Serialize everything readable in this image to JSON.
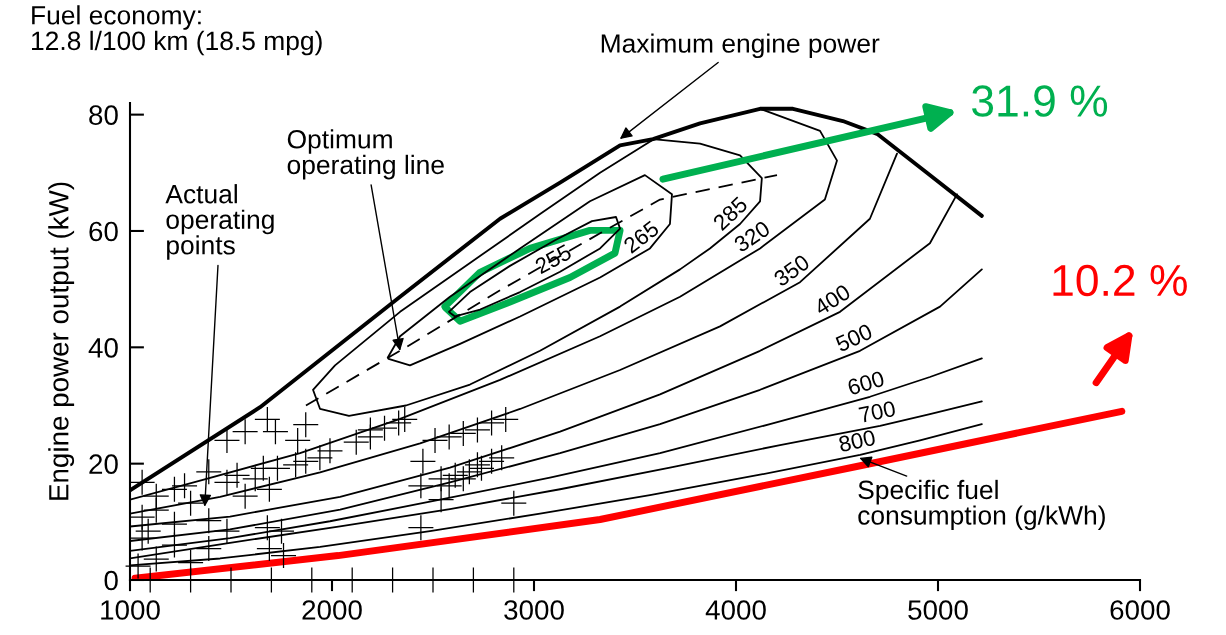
{
  "chart_data": {
    "type": "line",
    "ylabel": "Engine power output (kW)",
    "xlim": [
      1000,
      6000
    ],
    "xticks": [
      1000,
      2000,
      3000,
      4000,
      5000,
      6000
    ],
    "ylim": [
      0,
      82
    ],
    "yticks": [
      0,
      20,
      40,
      60,
      80
    ],
    "grid": false,
    "annotations": [
      "Fuel economy:\n12.8 l/100 km (18.5 mpg)",
      {
        "text": "Maximum engine power",
        "x": 3425,
        "y": 75.8
      },
      {
        "text": "Optimum\noperating line",
        "x": 2337,
        "y": 39.4
      },
      {
        "text": "Actual\noperating\npoints",
        "x": 1370,
        "y": 12.6
      },
      {
        "text": "Specific fuel\nconsumption (g/kWh)",
        "x": 4610,
        "y": 21
      },
      "31.9 %",
      "10.2 %"
    ],
    "series": [
      {
        "color": "#000000",
        "x": [
          1000,
          1644,
          2337,
          2832,
          3129,
          3426,
          3589,
          3822,
          4119,
          4282,
          4529,
          4698,
          4945,
          5217
        ],
        "values": [
          15.4,
          29.7,
          48.7,
          62.1,
          68.3,
          74.7,
          75.8,
          78.5,
          81.0,
          81.0,
          78.9,
          76.7,
          70.0,
          62.6
        ]
      },
      {
        "color": "#000000",
        "line_style": "dashed",
        "x": [
          1871,
          2337,
          2832,
          3327,
          3624,
          4203
        ],
        "values": [
          30.0,
          39.4,
          49.8,
          59.6,
          65.4,
          69.6
        ]
      },
      {
        "name": "255",
        "color": "#000000",
        "x": [
          2579,
          2683,
          2881,
          3104,
          3287,
          3406,
          3426,
          3327,
          3129,
          2931,
          2733,
          2609,
          2582
        ],
        "values": [
          46.1,
          49.5,
          54.0,
          58.4,
          61.7,
          62.4,
          60.4,
          57.0,
          53.0,
          49.5,
          46.5,
          45.3,
          46.0
        ]
      },
      {
        "name": "265",
        "color": "#000000",
        "x": [
          2277,
          2337,
          2584,
          2931,
          3277,
          3549,
          3683,
          3673,
          3574,
          3327,
          2931,
          2634,
          2386,
          2280
        ],
        "values": [
          38.3,
          41.9,
          48.7,
          57.0,
          65.1,
          69.6,
          66.3,
          61.2,
          57.0,
          52.0,
          45.3,
          40.6,
          36.9,
          38.0
        ]
      },
      {
        "name": "285",
        "color": "#000000",
        "x": [
          3589,
          3822,
          4020,
          4128,
          4119,
          4020,
          3871,
          3723,
          3426,
          3030,
          2683,
          2366,
          2084,
          1941,
          1906,
          2015,
          2337,
          2683,
          3030,
          3327,
          3585
        ],
        "values": [
          75.8,
          75.0,
          73.0,
          69.1,
          65.1,
          61.2,
          57.0,
          53.4,
          47.0,
          39.4,
          33.6,
          30.0,
          28.2,
          29.4,
          32.7,
          36.9,
          46.1,
          54.5,
          62.9,
          70.0,
          75.6
        ]
      },
      {
        "name": "320",
        "color": "#000000",
        "x": [
          4119,
          4416,
          4500,
          4440,
          4119,
          3723,
          3327,
          2832,
          2337,
          1842,
          1347,
          1000
        ],
        "values": [
          81.0,
          77.2,
          72.1,
          65.4,
          57.0,
          48.7,
          41.9,
          34.4,
          27.7,
          21.8,
          17.1,
          13.8
        ]
      },
      {
        "name": "350",
        "color": "#000000",
        "x": [
          4797,
          4663,
          4317,
          3921,
          3426,
          2931,
          2436,
          1941,
          1446,
          1000
        ],
        "values": [
          73.3,
          62.1,
          51.2,
          43.6,
          36.1,
          29.4,
          23.5,
          18.5,
          14.3,
          11.4
        ]
      },
      {
        "name": "400",
        "color": "#000000",
        "x": [
          5094,
          4960,
          4515,
          4119,
          3624,
          3129,
          2584,
          2040,
          1495,
          1000
        ],
        "values": [
          66.3,
          57.9,
          46.1,
          39.4,
          31.9,
          25.5,
          19.3,
          14.3,
          10.9,
          9.2
        ]
      },
      {
        "name": "500",
        "color": "#000000",
        "x": [
          5217,
          5010,
          4614,
          4119,
          3624,
          3129,
          2584,
          2040,
          1495,
          1000
        ],
        "values": [
          53.4,
          47.0,
          39.4,
          32.7,
          26.8,
          21.8,
          16.8,
          12.1,
          8.7,
          6.7
        ]
      },
      {
        "name": "600",
        "color": "#000000",
        "x": [
          5217,
          4960,
          4663,
          4168,
          3624,
          3079,
          2535,
          1990,
          1495,
          1000
        ],
        "values": [
          38.1,
          34.9,
          31.5,
          26.8,
          21.8,
          17.6,
          13.8,
          10.1,
          7.2,
          5.0
        ]
      },
      {
        "name": "700",
        "color": "#000000",
        "x": [
          5217,
          4960,
          4713,
          4218,
          3673,
          3129,
          2584,
          2040,
          1495,
          1000
        ],
        "values": [
          30.7,
          28.5,
          26.5,
          23.2,
          19.3,
          15.6,
          12.2,
          9.2,
          6.4,
          3.7
        ]
      },
      {
        "name": "800",
        "color": "#000000",
        "x": [
          5217,
          4911,
          4614,
          4119,
          3574,
          3030,
          2485,
          1941,
          1446,
          1000
        ],
        "values": [
          26.8,
          24.0,
          21.5,
          18.1,
          14.6,
          11.4,
          8.4,
          5.7,
          3.7,
          2.5
        ]
      },
      {
        "type": "scatter",
        "marker": "cross",
        "color": "#000000",
        "x": [
          1680,
          1570,
          1720,
          1870,
          1480,
          1830,
          2190,
          2260,
          2360,
          2330,
          2120,
          2190,
          1990,
          1940,
          1870,
          1820,
          1730,
          1660,
          1530,
          1390,
          1270,
          1220,
          1130,
          1480,
          1620,
          1690,
          1570,
          1300,
          1130,
          1060,
          1220,
          1390,
          1480,
          1060,
          1220,
          1390,
          1130,
          1300,
          1680,
          1750,
          1690,
          1760,
          2440,
          2540,
          2440,
          2900,
          2510,
          2580,
          2650,
          2720,
          2790,
          2860,
          2450,
          2540,
          2610,
          2680,
          2740,
          2790,
          2840,
          2720,
          2650,
          2580,
          1060,
          1090,
          1040,
          1100,
          1300,
          1500,
          1700,
          1900,
          2100,
          2300,
          2500,
          2700,
          2900
        ],
        "values": [
          27.6,
          25.5,
          25.5,
          26.7,
          24.0,
          24.0,
          25.8,
          26.1,
          27.6,
          27.0,
          23.7,
          24.6,
          22.2,
          21.0,
          20.4,
          19.8,
          19.2,
          19.2,
          18.0,
          18.6,
          16.2,
          15.6,
          14.4,
          16.8,
          17.4,
          15.6,
          14.4,
          13.2,
          12.0,
          10.8,
          9.6,
          10.2,
          8.4,
          7.2,
          6.0,
          5.4,
          3.6,
          3.0,
          9.0,
          8.4,
          5.4,
          4.2,
          16.2,
          13.8,
          9.0,
          13.2,
          24.0,
          24.6,
          25.2,
          25.8,
          27.0,
          27.6,
          20.4,
          17.4,
          18.0,
          18.6,
          19.2,
          20.4,
          21.0,
          19.8,
          17.4,
          16.2,
          16.8,
          8.4,
          2.4,
          0,
          0,
          0,
          0,
          0,
          0,
          0,
          0,
          0,
          0
        ]
      },
      {
        "color": "#00b050",
        "x": [
          2559,
          2733,
          2980,
          3277,
          3426,
          3401,
          3178,
          2881,
          2634,
          2562
        ],
        "values": [
          47.0,
          52.9,
          57.0,
          60.1,
          60.1,
          56.2,
          52.0,
          47.8,
          44.5,
          46.8
        ]
      },
      {
        "color": "#ff0000",
        "x": [
          1025,
          2030,
          3327,
          4609,
          5910
        ],
        "values": [
          0.3,
          4.2,
          10.4,
          19.6,
          29.0
        ]
      }
    ]
  }
}
